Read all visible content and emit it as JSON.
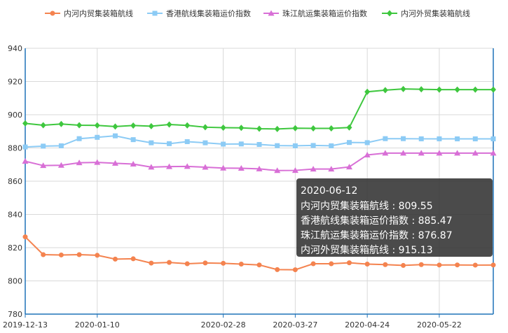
{
  "chart_data": {
    "type": "line",
    "x": [
      "2019-12-13",
      "2019-12-20",
      "2019-12-27",
      "2020-01-03",
      "2020-01-10",
      "2020-01-17",
      "2020-01-24",
      "2020-01-31",
      "2020-02-07",
      "2020-02-14",
      "2020-02-21",
      "2020-02-28",
      "2020-03-06",
      "2020-03-13",
      "2020-03-20",
      "2020-03-27",
      "2020-04-03",
      "2020-04-10",
      "2020-04-17",
      "2020-04-24",
      "2020-05-01",
      "2020-05-08",
      "2020-05-15",
      "2020-05-22",
      "2020-05-29",
      "2020-06-05",
      "2020-06-12"
    ],
    "xticks": [
      "2019-12-13",
      "2020-01-10",
      "2020-02-28",
      "2020-03-27",
      "2020-04-24",
      "2020-05-22"
    ],
    "ylim": [
      780,
      940
    ],
    "yticks": [
      780,
      800,
      820,
      840,
      860,
      880,
      900,
      920,
      940
    ],
    "grid": true,
    "legend_position": "top",
    "series": [
      {
        "name": "内河内贸集装箱航线",
        "color": "#f4834f",
        "marker": "circle",
        "values": [
          826.5,
          815.8,
          815.6,
          815.8,
          815.4,
          813.1,
          813.3,
          810.7,
          811.1,
          810.3,
          810.8,
          810.6,
          810.1,
          809.6,
          806.8,
          806.7,
          810.3,
          810.3,
          810.9,
          810.1,
          809.8,
          809.3,
          809.8,
          809.55,
          809.6,
          809.5,
          809.55
        ]
      },
      {
        "name": "香港航线集装箱运价指数",
        "color": "#8ccbf5",
        "marker": "square",
        "values": [
          880.6,
          881.1,
          881.3,
          885.6,
          886.4,
          887.3,
          885.0,
          883.1,
          882.6,
          883.8,
          883.1,
          882.3,
          882.4,
          882.1,
          881.4,
          881.3,
          881.5,
          881.3,
          883.3,
          883.2,
          885.6,
          885.6,
          885.5,
          885.5,
          885.47,
          885.47,
          885.47
        ]
      },
      {
        "name": "珠江航运集装箱运价指数",
        "color": "#d86fd6",
        "marker": "triangle",
        "values": [
          872.0,
          869.4,
          869.6,
          871.1,
          871.3,
          870.8,
          870.3,
          868.5,
          868.8,
          868.9,
          868.4,
          867.9,
          867.8,
          867.4,
          866.4,
          866.5,
          867.3,
          867.3,
          868.6,
          875.8,
          876.9,
          876.9,
          876.9,
          876.87,
          876.87,
          876.87,
          876.87
        ]
      },
      {
        "name": "内河外贸集装箱航线",
        "color": "#3ec73e",
        "marker": "diamond",
        "values": [
          894.8,
          893.7,
          894.4,
          893.7,
          893.6,
          892.9,
          893.5,
          893.1,
          894.1,
          893.6,
          892.5,
          892.2,
          892.1,
          891.6,
          891.4,
          891.9,
          891.8,
          891.8,
          892.3,
          913.8,
          914.8,
          915.5,
          915.3,
          915.13,
          915.13,
          915.13,
          915.13
        ]
      }
    ],
    "tooltip": {
      "date": "2020-06-12",
      "rows": [
        "内河内贸集装箱航线 : 809.55",
        "香港航线集装箱运价指数 : 885.47",
        "珠江航运集装箱运价指数 : 876.87",
        "内河外贸集装箱航线 : 915.13"
      ]
    }
  }
}
